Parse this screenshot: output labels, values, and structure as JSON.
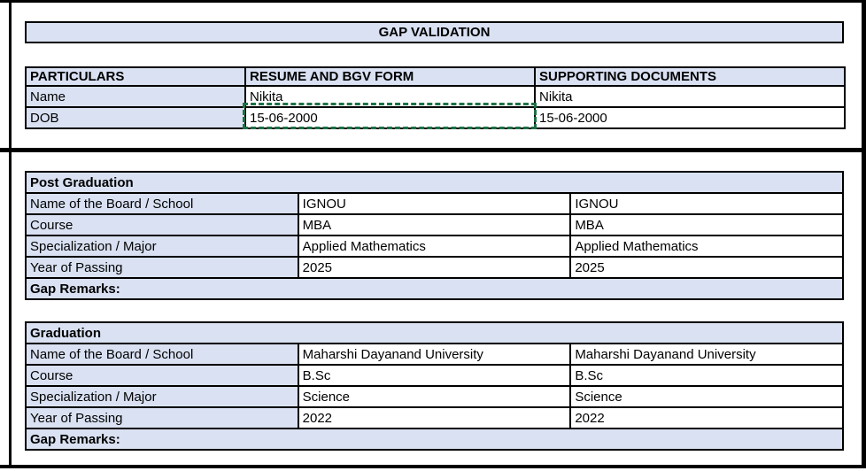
{
  "title": "GAP VALIDATION",
  "colors": {
    "header_fill": "#d9e1f2",
    "grid_border": "#000000",
    "copy_marquee_green": "#1e7145"
  },
  "particulars_table": {
    "headers": {
      "particulars": "PARTICULARS",
      "resume": "RESUME AND BGV FORM",
      "supporting": "SUPPORTING DOCUMENTS"
    },
    "rows": [
      {
        "label": "Name",
        "resume": "Nikita",
        "supporting": "Nikita"
      },
      {
        "label": "DOB",
        "resume": "15-06-2000",
        "supporting": "15-06-2000"
      }
    ]
  },
  "education_sections": [
    {
      "section_title": "Post Graduation",
      "rows": [
        {
          "label": "Name of the Board / School",
          "resume": "IGNOU",
          "supporting": "IGNOU"
        },
        {
          "label": "Course",
          "resume": "MBA",
          "supporting": "MBA"
        },
        {
          "label": "Specialization / Major",
          "resume": "Applied Mathematics",
          "supporting": "Applied Mathematics"
        },
        {
          "label": "Year of Passing",
          "resume": "2025",
          "supporting": "2025"
        }
      ],
      "footer": "Gap Remarks:"
    },
    {
      "section_title": "Graduation",
      "rows": [
        {
          "label": "Name of the Board / School",
          "resume": "Maharshi Dayanand University",
          "supporting": "Maharshi Dayanand University"
        },
        {
          "label": "Course",
          "resume": "B.Sc",
          "supporting": "B.Sc"
        },
        {
          "label": "Specialization / Major",
          "resume": "Science",
          "supporting": "Science"
        },
        {
          "label": "Year of Passing",
          "resume": "2022",
          "supporting": "2022"
        }
      ],
      "footer": "Gap Remarks:"
    }
  ]
}
